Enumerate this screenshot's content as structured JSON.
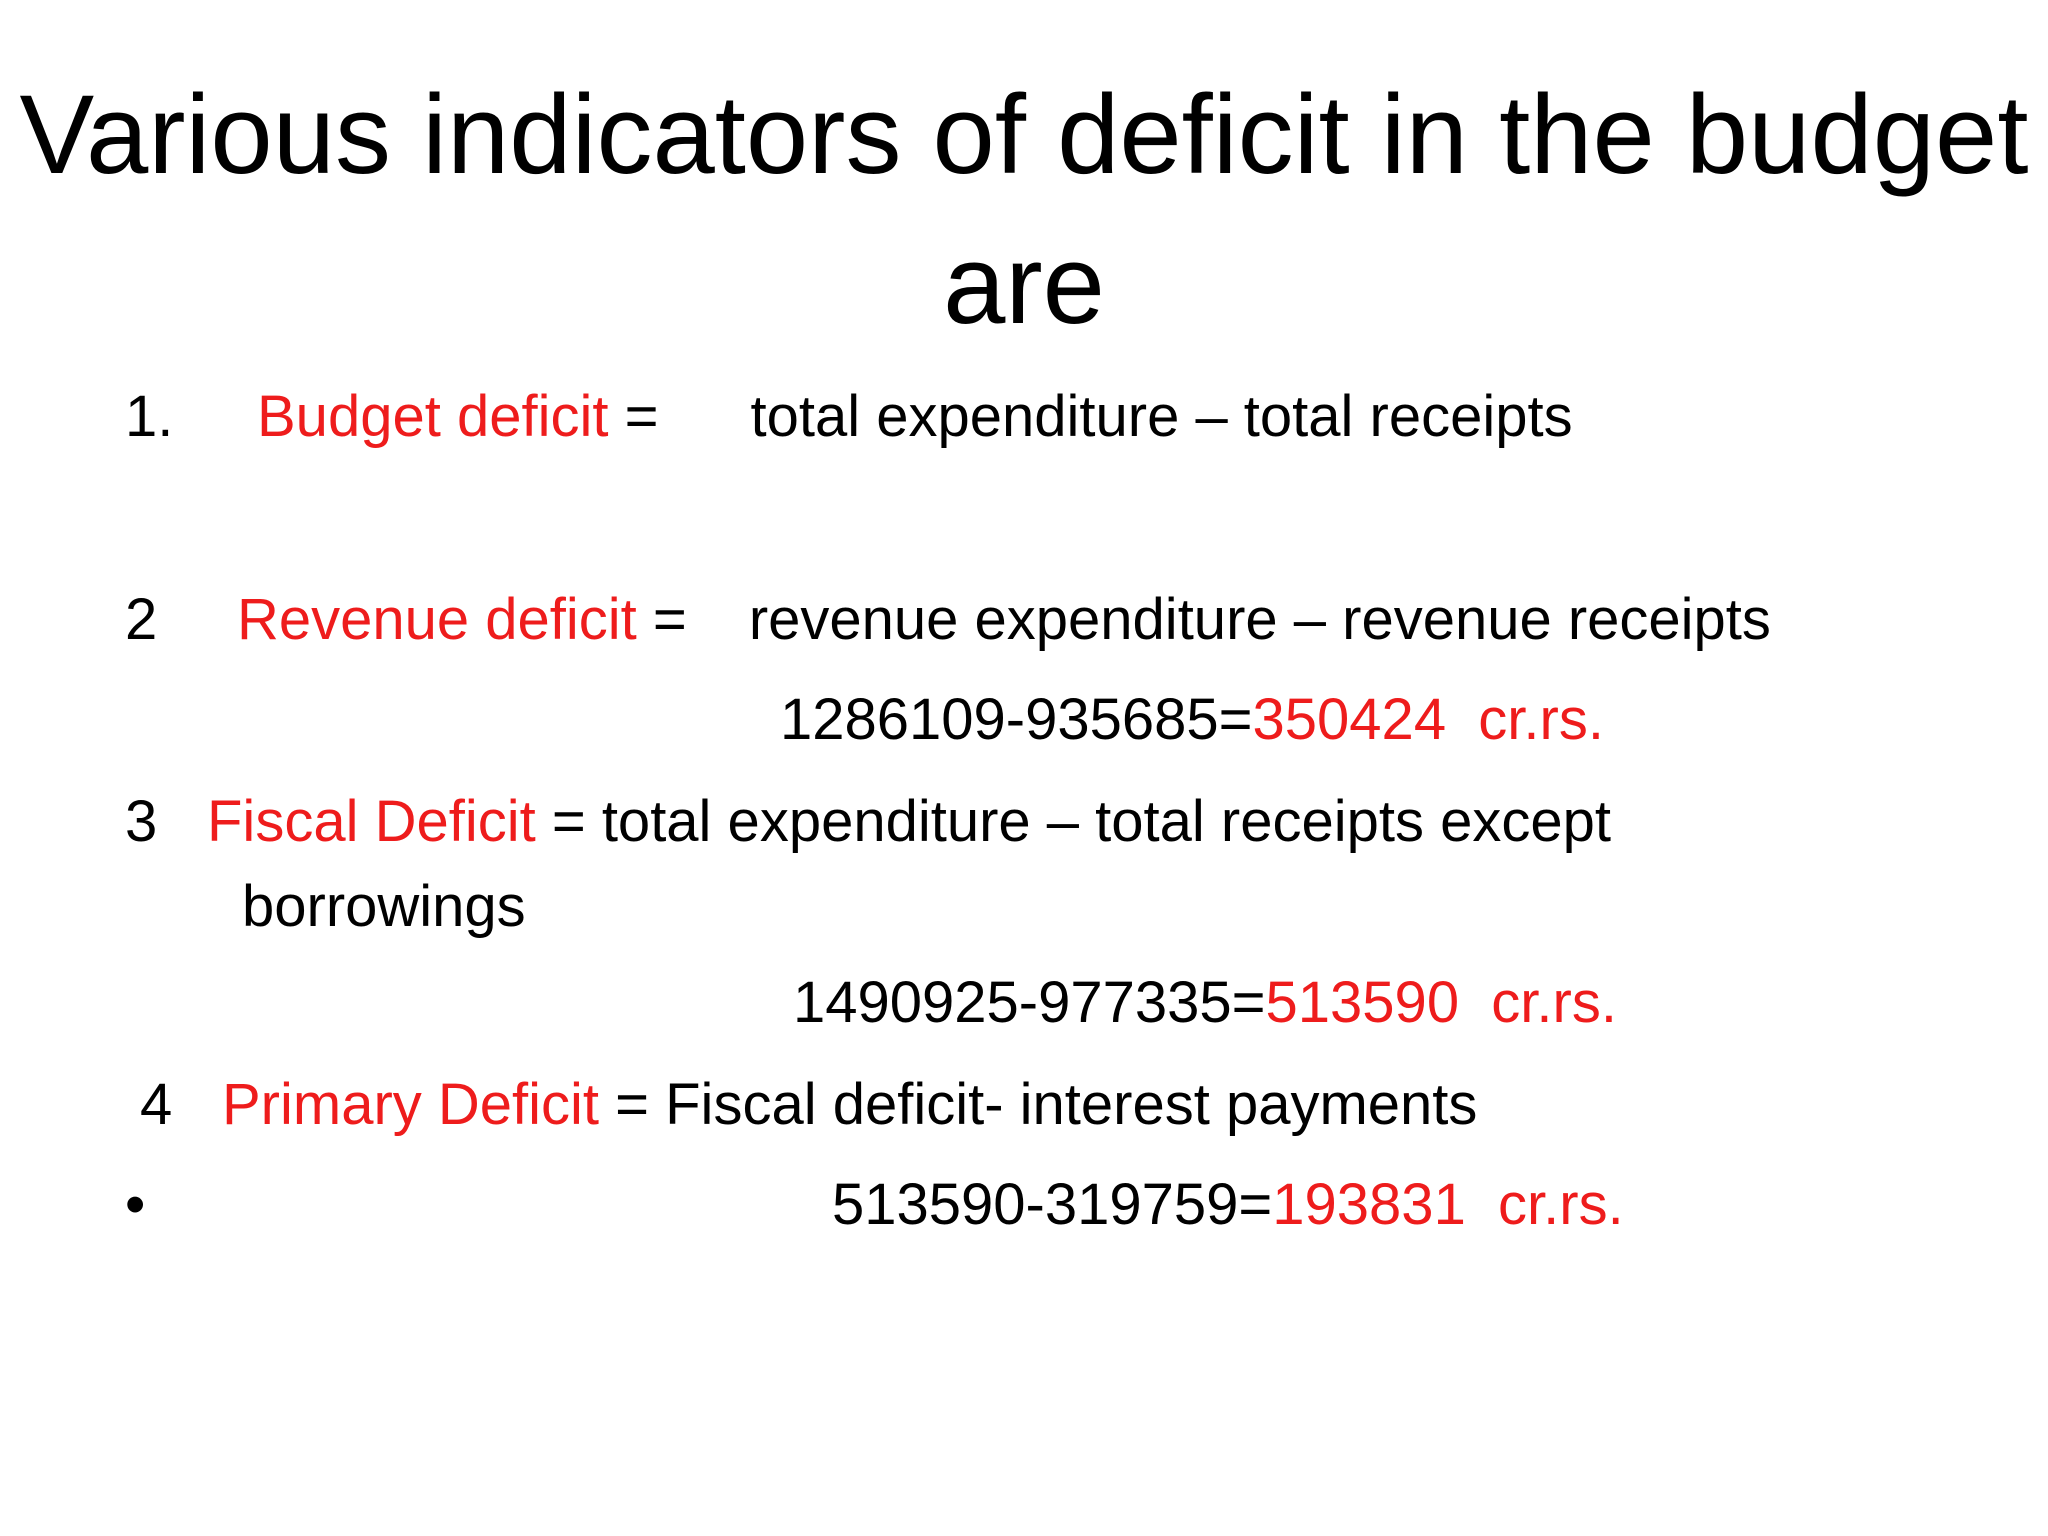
{
  "title": "Various indicators of deficit in the budget are",
  "items": [
    {
      "number": "1.",
      "term": "Budget deficit",
      "equals": " =",
      "formula": "total expenditure – total receipts"
    },
    {
      "number": "2",
      "term": "Revenue deficit",
      "equals": " =",
      "formula": "revenue expenditure – revenue receipts",
      "calculation": "1286109-935685=",
      "result": "350424  cr.rs."
    },
    {
      "number": "3",
      "term": "Fiscal Deficit",
      "formula": " = total expenditure – total receipts except",
      "formula_cont": "borrowings",
      "calculation": "1490925-977335=",
      "result": "513590  cr.rs."
    },
    {
      "number": "4",
      "term": "Primary Deficit",
      "formula": " = Fiscal deficit- interest payments"
    },
    {
      "bullet": "•",
      "calculation": "513590-319759=",
      "result": "193831  cr.rs."
    }
  ],
  "colors": {
    "text": "#000000",
    "accent": "#ee1c1c",
    "background": "#ffffff"
  }
}
